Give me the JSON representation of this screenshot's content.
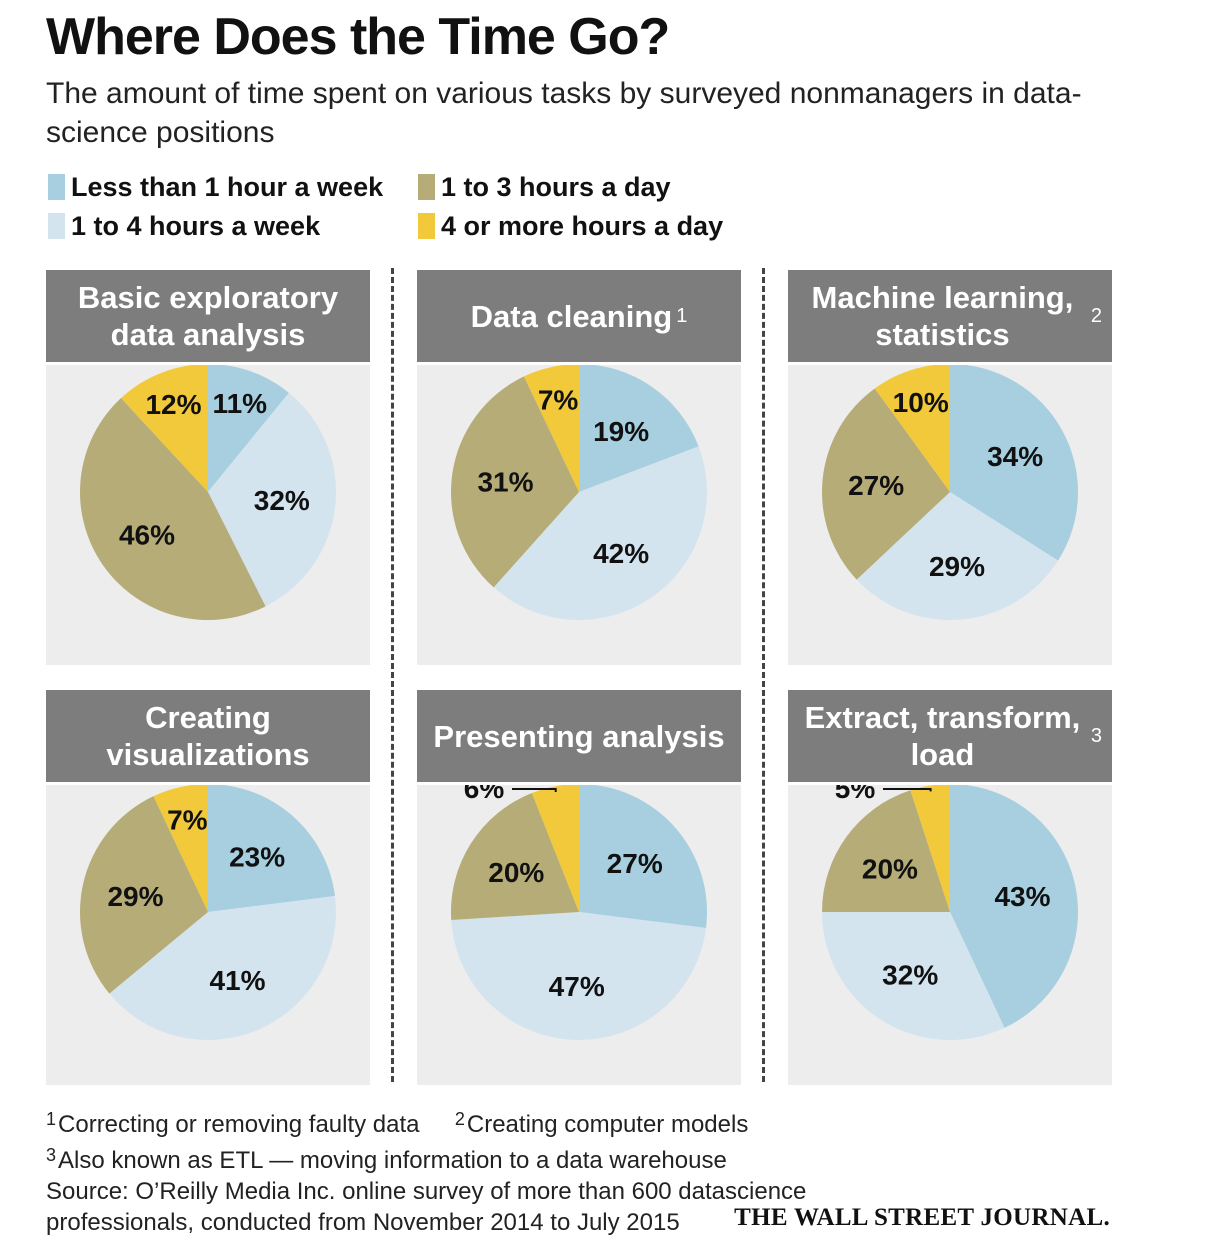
{
  "title": "Where Does the Time Go?",
  "subtitle": "The amount of time spent on various tasks by surveyed nonmanagers in data-science positions",
  "legend": [
    {
      "label": "Less than 1 hour a week",
      "color": "#a8cfdf"
    },
    {
      "label": "1 to 4 hours a week",
      "color": "#d4e4ef"
    },
    {
      "label": "1 to 3 hours a day",
      "color": "#b6ac78"
    },
    {
      "label": "4 or more hours a day",
      "color": "#f1c93b"
    }
  ],
  "chart_data": [
    {
      "type": "pie",
      "title": "Basic exploratory data analysis",
      "note": "",
      "categories": [
        "Less than 1 hour a week",
        "1 to 4 hours a week",
        "1 to 3 hours a day",
        "4 or more hours a day"
      ],
      "values": [
        11,
        32,
        46,
        12
      ],
      "labels": [
        "11%",
        "32%",
        "46%",
        "12%"
      ]
    },
    {
      "type": "pie",
      "title": "Data cleaning",
      "note": "1",
      "categories": [
        "Less than 1 hour a week",
        "1 to 4 hours a week",
        "1 to 3 hours a day",
        "4 or more hours a day"
      ],
      "values": [
        19,
        42,
        31,
        7
      ],
      "labels": [
        "19%",
        "42%",
        "31%",
        "7%"
      ]
    },
    {
      "type": "pie",
      "title": "Machine learning, statistics",
      "note": "2",
      "categories": [
        "Less than 1 hour a week",
        "1 to 4 hours a week",
        "1 to 3 hours a day",
        "4 or more hours a day"
      ],
      "values": [
        34,
        29,
        27,
        10
      ],
      "labels": [
        "34%",
        "29%",
        "27%",
        "10%"
      ]
    },
    {
      "type": "pie",
      "title": "Creating visualizations",
      "note": "",
      "categories": [
        "Less than 1 hour a week",
        "1 to 4 hours a week",
        "1 to 3 hours a day",
        "4 or more hours a day"
      ],
      "values": [
        23,
        41,
        29,
        7
      ],
      "labels": [
        "23%",
        "41%",
        "29%",
        "7%"
      ]
    },
    {
      "type": "pie",
      "title": "Presenting analysis",
      "note": "",
      "categories": [
        "Less than 1 hour a week",
        "1 to 4 hours a week",
        "1 to 3 hours a day",
        "4 or more hours a day"
      ],
      "values": [
        27,
        47,
        20,
        6
      ],
      "labels": [
        "27%",
        "47%",
        "20%",
        "6%"
      ]
    },
    {
      "type": "pie",
      "title": "Extract, transform, load",
      "note": "3",
      "categories": [
        "Less than 1 hour a week",
        "1 to 4 hours a week",
        "1 to 3 hours a day",
        "4 or more hours a day"
      ],
      "values": [
        43,
        32,
        20,
        5
      ],
      "labels": [
        "43%",
        "32%",
        "20%",
        "5%"
      ]
    }
  ],
  "footnotes": {
    "n1": "1",
    "t1": "Correcting or removing faulty data",
    "n2": "2",
    "t2": "Creating computer models",
    "n3": "3",
    "t3": "Also known as ETL — moving information to a data warehouse",
    "source1": "Source: O’Reilly Media Inc. online survey of more than 600 datascience",
    "source2": "professionals, conducted from November 2014 to July 2015"
  },
  "credit": "THE WALL STREET JOURNAL."
}
